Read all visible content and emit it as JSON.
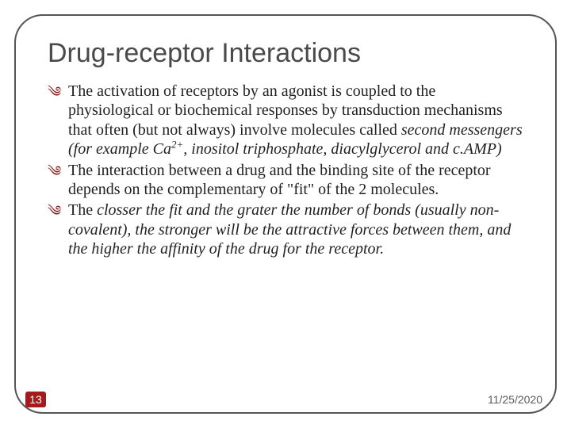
{
  "title": "Drug-receptor Interactions",
  "bullets": [
    {
      "pre": "The activation of receptors by an agonist is coupled to the physiological or biochemical responses by transduction mechanisms that often (but not always) involve molecules called ",
      "italic1": "second messengers (for example Ca",
      "sup": "2+",
      "italic2": ", inositol triphosphate, diacylglycerol and c.AMP)"
    },
    {
      "text": "The interaction between a drug and the binding site of the receptor depends on the complementary of \"fit\" of the 2 molecules."
    },
    {
      "pre": "The ",
      "italic": "closser the fit and the grater the number of bonds (usually non-covalent), the stronger will be the attractive forces between them, and the higher the affinity of the drug for the receptor."
    }
  ],
  "pageNumber": "13",
  "date": "11/25/2020",
  "colors": {
    "bulletIcon": "#8b1a1a",
    "titleText": "#4a4a4a",
    "frameBorder": "#555555",
    "pageBg": "#a11d1d",
    "dateText": "#5a5a5a"
  }
}
